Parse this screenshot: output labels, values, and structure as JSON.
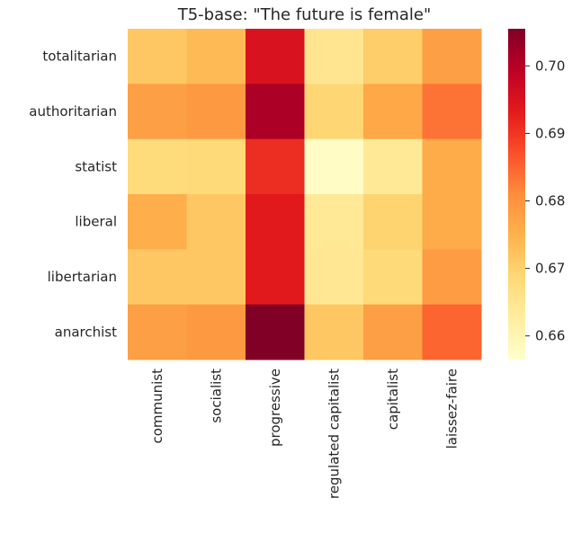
{
  "chart_data": {
    "type": "heatmap",
    "title": "T5-base: \"The future is female\"",
    "xlabel": "",
    "ylabel": "",
    "x_categories": [
      "communist",
      "socialist",
      "progressive",
      "regulated capitalist",
      "capitalist",
      "laissez-faire"
    ],
    "y_categories": [
      "totalitarian",
      "authoritarian",
      "statist",
      "liberal",
      "libertarian",
      "anarchist"
    ],
    "values": [
      [
        0.6715,
        0.6735,
        0.695,
        0.665,
        0.6705,
        0.678
      ],
      [
        0.678,
        0.679,
        0.701,
        0.669,
        0.6765,
        0.6835
      ],
      [
        0.668,
        0.6685,
        0.691,
        0.6575,
        0.664,
        0.676
      ],
      [
        0.6755,
        0.6715,
        0.6935,
        0.664,
        0.6695,
        0.676
      ],
      [
        0.6715,
        0.6715,
        0.6935,
        0.6645,
        0.6685,
        0.6785
      ],
      [
        0.678,
        0.679,
        0.7055,
        0.6715,
        0.678,
        0.685
      ]
    ],
    "colorbar": {
      "min": 0.6565,
      "max": 0.7055,
      "ticks": [
        0.66,
        0.67,
        0.68,
        0.69,
        0.7
      ],
      "tick_labels": [
        "0.66",
        "0.67",
        "0.68",
        "0.69",
        "0.70"
      ],
      "colormap": "YlOrRd"
    },
    "grid": false
  }
}
